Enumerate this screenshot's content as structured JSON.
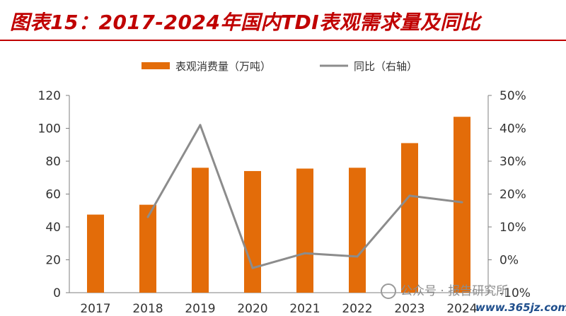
{
  "header": {
    "title": "图表15：2017-2024年国内TDI表观需求量及同比"
  },
  "chart_data": {
    "type": "bar",
    "categories": [
      "2017",
      "2018",
      "2019",
      "2020",
      "2021",
      "2022",
      "2023",
      "2024"
    ],
    "series": [
      {
        "name": "表观消费量（万吨）",
        "type": "bar",
        "axis": "left",
        "color": "#e36c09",
        "values": [
          47.5,
          53.5,
          76,
          74,
          75.5,
          76,
          91,
          107
        ]
      },
      {
        "name": "同比（右轴）",
        "type": "line",
        "axis": "right",
        "color": "#8c8c8c",
        "values": [
          null,
          13,
          41,
          -2.5,
          2,
          1,
          19.5,
          17.5
        ]
      }
    ],
    "ylim_left": [
      0,
      120
    ],
    "yticks_left": [
      "0",
      "20",
      "40",
      "60",
      "80",
      "100",
      "120"
    ],
    "ylim_right": [
      -10,
      50
    ],
    "yticks_right": [
      "-10%",
      "0%",
      "10%",
      "20%",
      "30%",
      "40%",
      "50%"
    ],
    "grid": false,
    "legend_position": "top-center"
  },
  "watermark": {
    "text": "公众号 · 报告研究所",
    "site": "www.365jz.com"
  }
}
